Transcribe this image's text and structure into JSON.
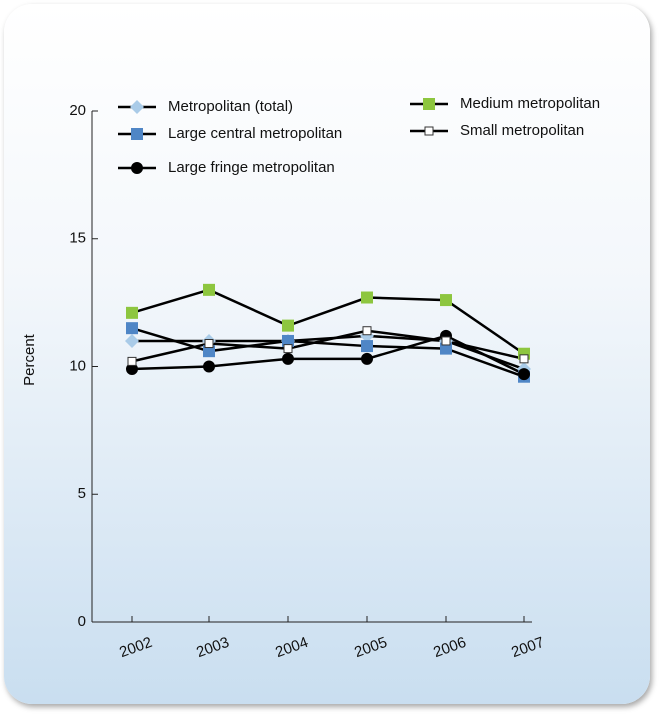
{
  "chart_data": {
    "type": "line",
    "y_label": "Percent",
    "x": [
      "2002",
      "2003",
      "2004",
      "2005",
      "2006",
      "2007"
    ],
    "ylim": [
      0,
      20
    ],
    "yticks": [
      0,
      5,
      10,
      15,
      20
    ],
    "series": [
      {
        "name": "Metropolitan (total)",
        "color": "#a9cbe8",
        "marker": "diamond",
        "values": [
          11.0,
          11.0,
          11.0,
          11.2,
          11.0,
          9.9
        ]
      },
      {
        "name": "Large central metropolitan",
        "color": "#4f86c6",
        "marker": "square",
        "values": [
          11.5,
          10.6,
          11.0,
          10.8,
          10.7,
          9.6
        ]
      },
      {
        "name": "Large fringe metropolitan",
        "color": "#000000",
        "marker": "circle",
        "values": [
          9.9,
          10.0,
          10.3,
          10.3,
          11.2,
          9.7
        ]
      },
      {
        "name": "Medium metropolitan",
        "color": "#8dc63f",
        "marker": "square",
        "values": [
          12.1,
          13.0,
          11.6,
          12.7,
          12.6,
          10.5
        ]
      },
      {
        "name": "Small metropolitan",
        "color": "#ffffff",
        "marker": "square",
        "values": [
          10.2,
          10.9,
          10.7,
          11.4,
          11.0,
          10.3
        ]
      }
    ]
  }
}
